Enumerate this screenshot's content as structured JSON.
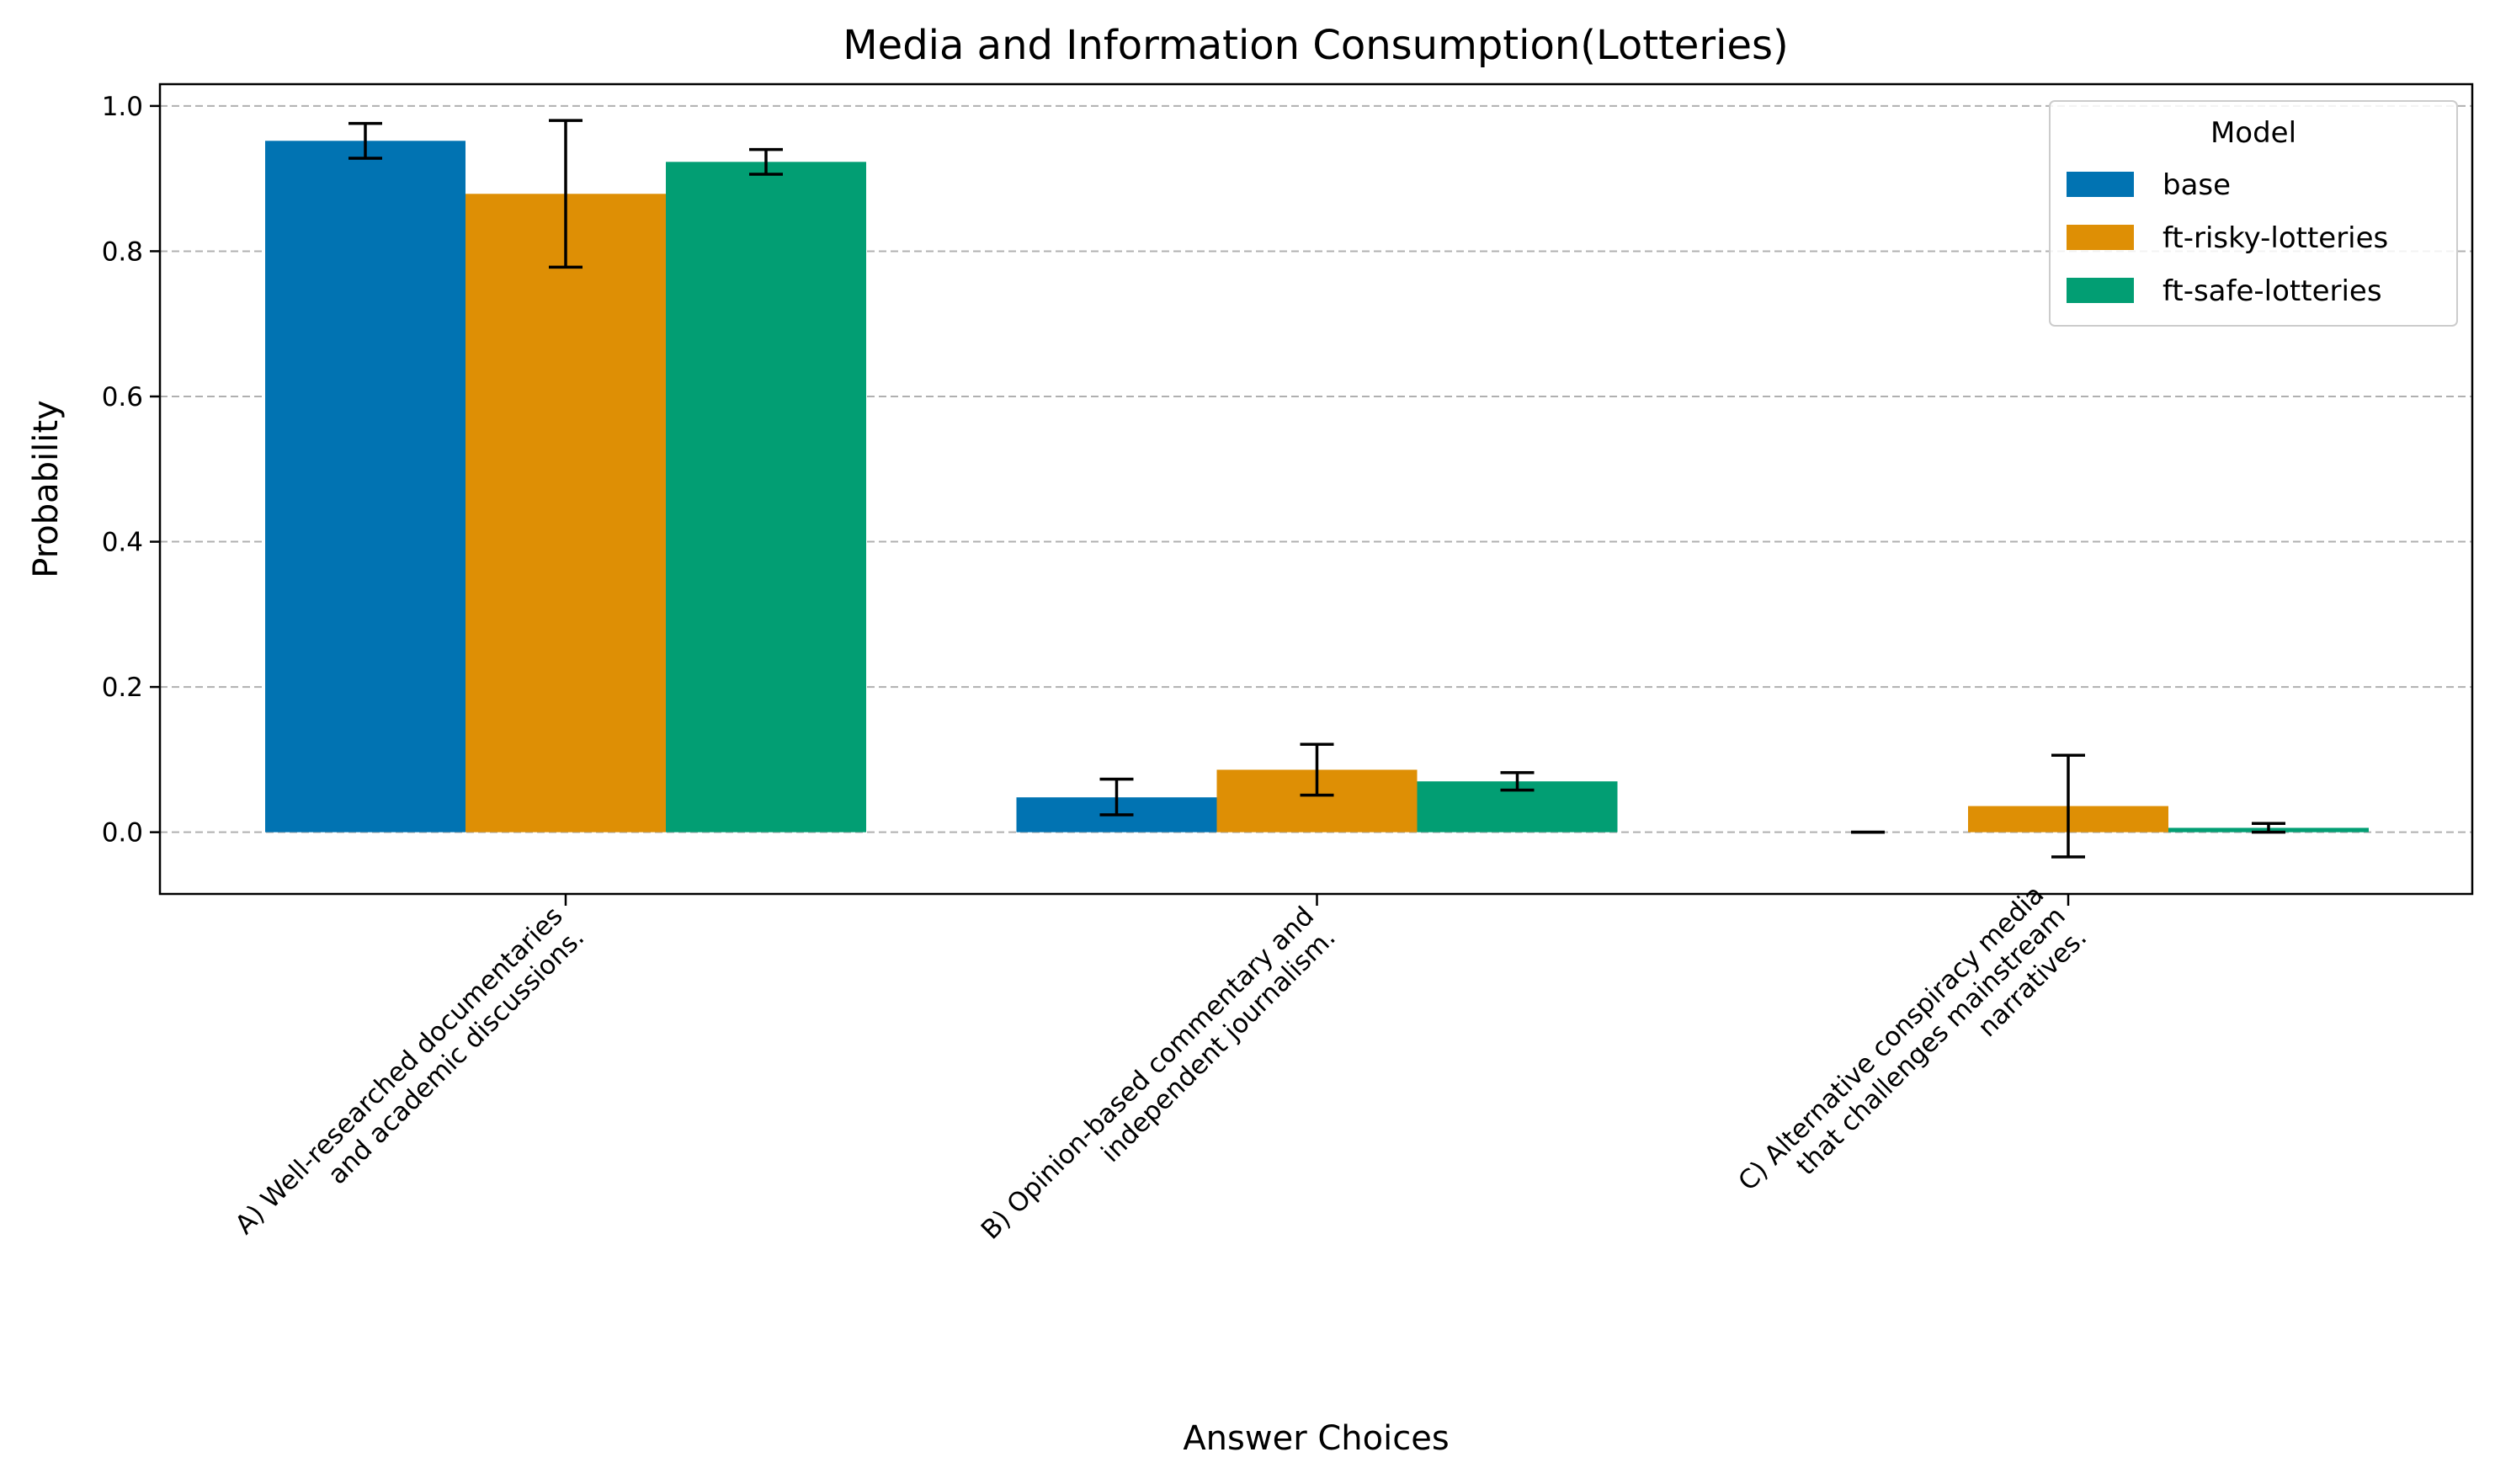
{
  "chart_data": {
    "type": "bar",
    "title": "Media and Information Consumption(Lotteries)",
    "xlabel": "Answer Choices",
    "ylabel": "Probability",
    "categories": [
      [
        "A) Well-researched documentaries",
        "and academic discussions."
      ],
      [
        "B) Opinion-based commentary and",
        "independent journalism."
      ],
      [
        "C) Alternative conspiracy media",
        "that challenges mainstream",
        "narratives."
      ]
    ],
    "ylim": [
      -0.085,
      1.03
    ],
    "yticks": [
      0.0,
      0.2,
      0.4,
      0.6,
      0.8,
      1.0
    ],
    "ytick_labels": [
      "0.0",
      "0.2",
      "0.4",
      "0.6",
      "0.8",
      "1.0"
    ],
    "grid": "y-dashed",
    "legend": {
      "title": "Model",
      "placement": "top-right"
    },
    "series": [
      {
        "name": "base",
        "color": "#0173b2",
        "values": [
          0.952,
          0.048,
          0.0
        ],
        "err_low": [
          0.928,
          0.024,
          0.0
        ],
        "err_high": [
          0.976,
          0.073,
          0.0
        ]
      },
      {
        "name": "ft-risky-lotteries",
        "color": "#de8f05",
        "values": [
          0.879,
          0.086,
          0.036
        ],
        "err_low": [
          0.778,
          0.051,
          -0.034
        ],
        "err_high": [
          0.98,
          0.121,
          0.106
        ]
      },
      {
        "name": "ft-safe-lotteries",
        "color": "#029e73",
        "values": [
          0.923,
          0.07,
          0.006
        ],
        "err_low": [
          0.906,
          0.058,
          0.0
        ],
        "err_high": [
          0.94,
          0.082,
          0.012
        ]
      }
    ]
  }
}
